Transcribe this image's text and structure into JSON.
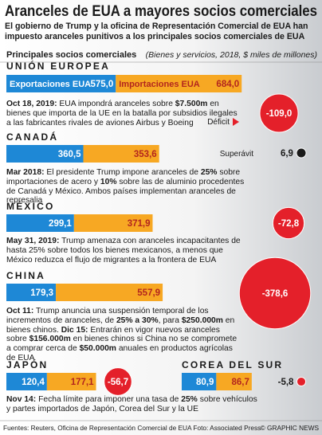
{
  "title": "Aranceles de EUA a mayores socios comerciales",
  "subtitle": "El gobierno de Trump y la oficina de Representación Comercial de EUA han impuesto aranceles punitivos a los principales socios comerciales de EUA",
  "chart_data": {
    "type": "bar",
    "title": "Principales socios comerciales",
    "note": "(Bienes y servicios, 2018, $ miles de millones)",
    "categories": [
      "UNIÓN EUROPEA",
      "CANADÁ",
      "MÉXICO",
      "CHINA",
      "JAPÓN",
      "COREA DEL SUR"
    ],
    "series": [
      {
        "name": "Exportaciones EUA",
        "color": "#1e88d6",
        "values": [
          575.0,
          360.5,
          299.1,
          179.3,
          120.4,
          80.9
        ],
        "value_labels": [
          "575,0",
          "360,5",
          "299,1",
          "179,3",
          "120,4",
          "80,9"
        ]
      },
      {
        "name": "Importaciones EUA",
        "color": "#f7a823",
        "values": [
          684.0,
          353.6,
          371.9,
          557.9,
          177.1,
          86.7
        ],
        "value_labels": [
          "684,0",
          "353,6",
          "371,9",
          "557,9",
          "177,1",
          "86,7"
        ]
      }
    ],
    "balance": {
      "values": [
        -109.0,
        6.9,
        -72.8,
        -378.6,
        -56.7,
        -5.8
      ],
      "value_labels": [
        "-109,0",
        "6,9",
        "-72,8",
        "-378,6",
        "-56,7",
        "-5,8"
      ],
      "negative_label": "Déficit",
      "positive_label": "Superávit",
      "negative_color": "#e4202a",
      "positive_color": "#1a1a1a"
    },
    "notes": [
      [
        {
          "text": "Oct 18, 2019:",
          "bold": true
        },
        {
          "text": " EUA impondrá aranceles sobre "
        },
        {
          "text": "$7.500m",
          "bold": true
        },
        {
          "text": " en bienes que importa de la UE en la batalla por subsidios ilegales a las fabricantes rivales de aviones Airbus y Boeing"
        }
      ],
      [
        {
          "text": "Mar 2018:",
          "bold": true
        },
        {
          "text": " El presidente Trump impone aranceles de "
        },
        {
          "text": "25%",
          "bold": true
        },
        {
          "text": " sobre importaciones de acero y "
        },
        {
          "text": "10%",
          "bold": true
        },
        {
          "text": " sobre las de aluminio procedentes de Canadá y México. Ambos países implementan aranceles de represalia"
        }
      ],
      [
        {
          "text": "May 31, 2019:",
          "bold": true
        },
        {
          "text": " Trump amenaza con aranceles incapacitantes de hasta 25% sobre todos los bienes mexicanos, a menos que México reduzca el flujo de migrantes a la frontera de EUA"
        }
      ],
      [
        {
          "text": "Oct 11:",
          "bold": true
        },
        {
          "text": " Trump anuncia una suspensión temporal de los incrementos de aranceles, de "
        },
        {
          "text": "25% a 30%",
          "bold": true
        },
        {
          "text": ", para "
        },
        {
          "text": "$250.000m",
          "bold": true
        },
        {
          "text": " en bienes chinos. "
        },
        {
          "text": "Dic 15:",
          "bold": true
        },
        {
          "text": " Entrarán en vigor nuevos aranceles sobre "
        },
        {
          "text": "$156.000m",
          "bold": true
        },
        {
          "text": " en bienes chinos si China no se compromete a comprar cerca de "
        },
        {
          "text": "$50.000m",
          "bold": true
        },
        {
          "text": " anuales en productos agrícolas de EUA"
        }
      ],
      [
        {
          "text": "Nov 14:",
          "bold": true
        },
        {
          "text": " Fecha límite para imponer una tasa de "
        },
        {
          "text": "25%",
          "bold": true
        },
        {
          "text": " sobre vehículos y partes importados de Japón, Corea del Sur y la UE"
        }
      ]
    ]
  },
  "footer": {
    "sources": "Fuentes: Reuters, Oficina de Representación Comercial de EUA Foto: Associated Press",
    "credit": "© GRAPHIC NEWS"
  }
}
